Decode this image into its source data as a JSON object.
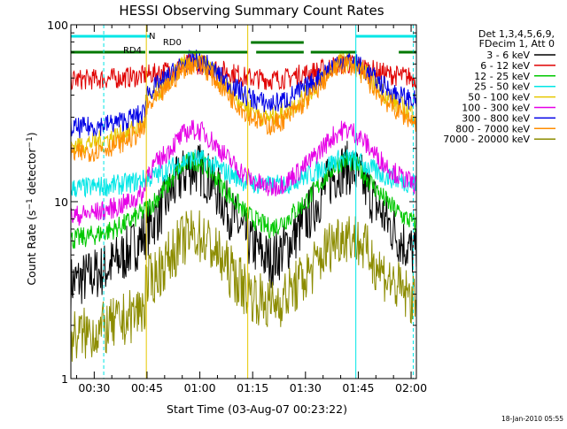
{
  "chart_data": {
    "type": "line",
    "title": "HESSI Observing Summary Count Rates",
    "xlabel": "Start Time (03-Aug-07 00:23:22)",
    "ylabel": "Count Rate (s⁻¹ detector⁻¹)",
    "y_scale": "log",
    "ylim": [
      1,
      100
    ],
    "xlim_minutes": [
      23.37,
      121.5
    ],
    "x_ticks": [
      {
        "label": "00:30",
        "minutes": 30
      },
      {
        "label": "00:45",
        "minutes": 45
      },
      {
        "label": "01:00",
        "minutes": 60
      },
      {
        "label": "01:15",
        "minutes": 75
      },
      {
        "label": "01:30",
        "minutes": 90
      },
      {
        "label": "01:45",
        "minutes": 105
      },
      {
        "label": "02:00",
        "minutes": 120
      }
    ],
    "y_ticks": [
      {
        "label": "1",
        "value": 1
      },
      {
        "label": "10",
        "value": 10
      },
      {
        "label": "100",
        "value": 100
      }
    ],
    "legend_position": "right",
    "legend_header": [
      "Det 1,3,4,5,6,9,",
      "FDecim 1, Att 0"
    ],
    "series": [
      {
        "name": "3 - 6 keV",
        "color": "#000000",
        "mid": 2.6,
        "peak": 15.5
      },
      {
        "name": "6 - 12 keV",
        "color": "#e00000",
        "mid": 48,
        "peak": 60
      },
      {
        "name": "12 - 25 keV",
        "color": "#00c800",
        "mid": 5.3,
        "peak": 17
      },
      {
        "name": "25 - 50 keV",
        "color": "#00e6e6",
        "mid": 11.5,
        "peak": 17.5
      },
      {
        "name": "50 - 100 keV",
        "color": "#e6c800",
        "mid": 24,
        "peak": 63
      },
      {
        "name": "100 - 300 keV",
        "color": "#e600e6",
        "mid": 9.5,
        "peak": 25.5
      },
      {
        "name": "300 - 800 keV",
        "color": "#0000e6",
        "mid": 31,
        "peak": 63
      },
      {
        "name": "800 - 7000 keV",
        "color": "#ff8c00",
        "mid": 21,
        "peak": 60
      },
      {
        "name": "7000 - 20000 keV",
        "color": "#8c8c00",
        "mid": 1.9,
        "peak": 6.5
      }
    ],
    "annotations": {
      "night_label": "N",
      "decimation_labels": [
        "RD4",
        "RD0"
      ],
      "timestamp": "18-Jan-2010 05:55"
    }
  }
}
